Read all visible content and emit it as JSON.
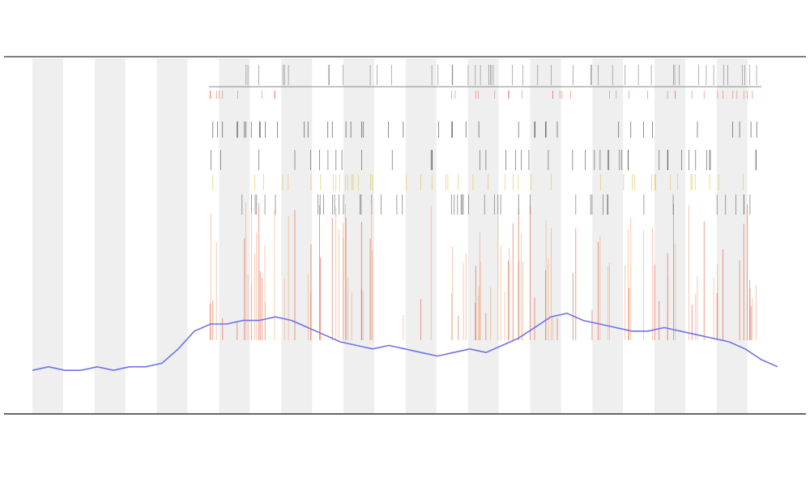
{
  "chart_data": {
    "type": "line",
    "x": [
      0,
      1,
      2,
      3,
      4,
      5,
      6,
      7,
      8,
      9,
      10,
      11,
      12,
      13,
      14,
      15,
      16,
      17,
      18,
      19,
      20,
      21,
      22,
      23,
      24,
      25,
      26,
      27,
      28,
      29,
      30,
      31,
      32,
      33,
      34,
      35,
      36,
      37,
      38,
      39,
      40,
      41,
      42,
      43,
      44,
      45,
      46
    ],
    "values": [
      12,
      13,
      12,
      12,
      13,
      12,
      13,
      13,
      14,
      18,
      23,
      25,
      25,
      26,
      26,
      27,
      26,
      24,
      22,
      20,
      19,
      18,
      19,
      18,
      17,
      16,
      17,
      18,
      17,
      19,
      21,
      24,
      27,
      28,
      26,
      25,
      24,
      23,
      23,
      24,
      23,
      22,
      21,
      20,
      18,
      15,
      13
    ],
    "color": "#6f72e8",
    "xlim": [
      0,
      46
    ],
    "ylim": [
      0,
      100
    ]
  }
}
